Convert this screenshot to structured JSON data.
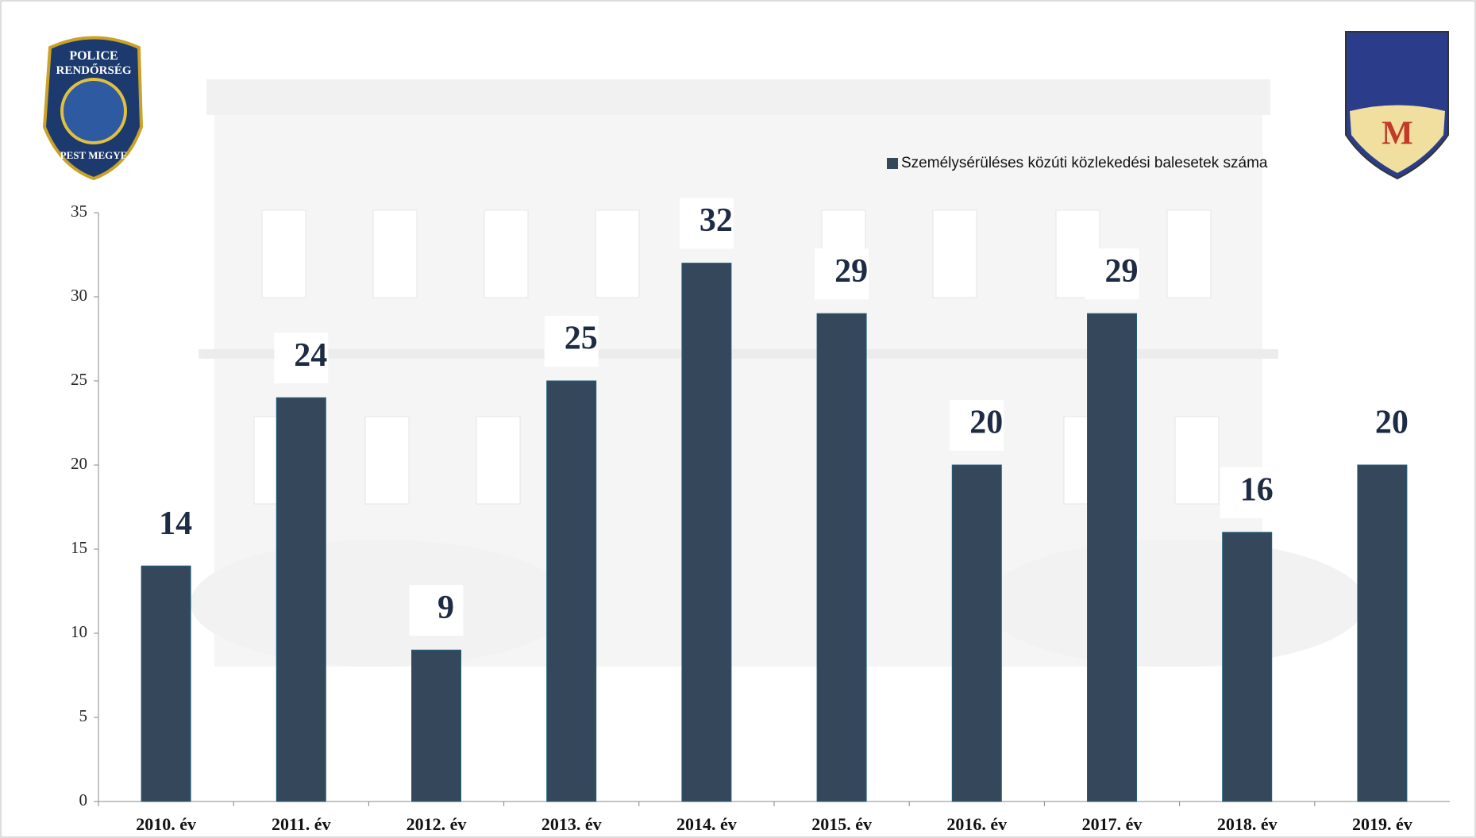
{
  "chart_data": {
    "type": "bar",
    "categories": [
      "2010. év",
      "2011. év",
      "2012. év",
      "2013. év",
      "2014. év",
      "2015. év",
      "2016. év",
      "2017. év",
      "2018. év",
      "2019. év"
    ],
    "series": [
      {
        "name": "Személysérüléses közúti közlekedési balesetek száma",
        "color": "#35475a",
        "values": [
          14,
          24,
          9,
          25,
          32,
          29,
          20,
          29,
          16,
          20
        ]
      }
    ],
    "ylim": [
      0,
      35
    ],
    "yticks": [
      0,
      5,
      10,
      15,
      20,
      25,
      30,
      35
    ],
    "grid": false,
    "legend": "top-right"
  },
  "logos": {
    "left": [
      "POLICE",
      "RENDŐRSÉG",
      "PEST MEGYE"
    ],
    "right": "M"
  }
}
